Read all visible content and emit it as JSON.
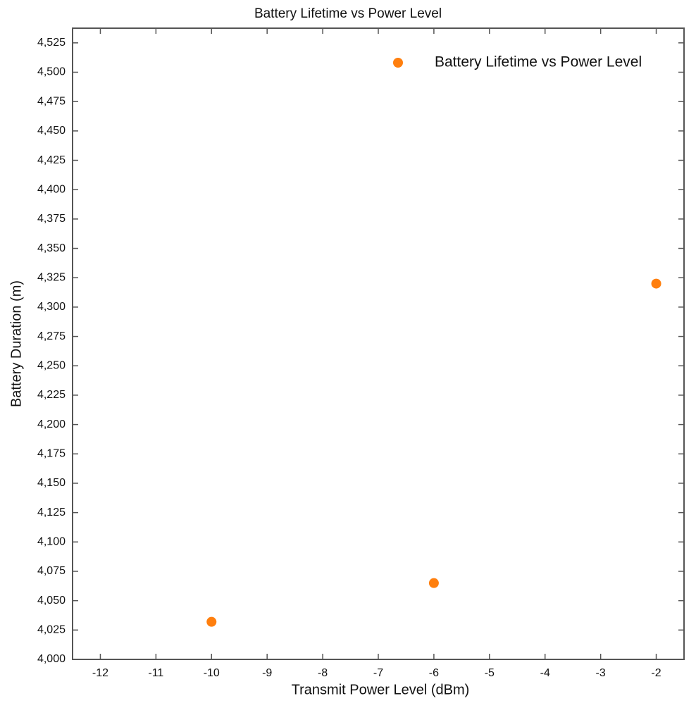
{
  "chart_data": {
    "type": "scatter",
    "title": "Battery Lifetime vs Power Level",
    "x_label": "Transmit Power Level (dBm)",
    "y_label": "Battery Duration (m)",
    "series": [
      {
        "name": "Battery Lifetime vs Power Level",
        "color": "#ff7f0e",
        "x": [
          -10,
          -6,
          -2
        ],
        "values": [
          4032,
          4065,
          4320
        ]
      }
    ],
    "xlim": [
      -12.5,
      -1.5
    ],
    "ylim": [
      4000,
      4537.5
    ],
    "xticks": [
      -12,
      -11,
      -10,
      -9,
      -8,
      -7,
      -6,
      -5,
      -4,
      -3,
      -2
    ],
    "yticks": [
      {
        "value": 4000,
        "label": "4,000"
      },
      {
        "value": 4025,
        "label": "4,025"
      },
      {
        "value": 4050,
        "label": "4,050"
      },
      {
        "value": 4075,
        "label": "4,075"
      },
      {
        "value": 4100,
        "label": "4,100"
      },
      {
        "value": 4125,
        "label": "4,125"
      },
      {
        "value": 4150,
        "label": "4,150"
      },
      {
        "value": 4175,
        "label": "4,175"
      },
      {
        "value": 4200,
        "label": "4,200"
      },
      {
        "value": 4225,
        "label": "4,225"
      },
      {
        "value": 4250,
        "label": "4,250"
      },
      {
        "value": 4275,
        "label": "4,275"
      },
      {
        "value": 4300,
        "label": "4,300"
      },
      {
        "value": 4325,
        "label": "4,325"
      },
      {
        "value": 4350,
        "label": "4,350"
      },
      {
        "value": 4375,
        "label": "4,375"
      },
      {
        "value": 4400,
        "label": "4,400"
      },
      {
        "value": 4425,
        "label": "4,425"
      },
      {
        "value": 4450,
        "label": "4,450"
      },
      {
        "value": 4475,
        "label": "4,475"
      },
      {
        "value": 4500,
        "label": "4,500"
      },
      {
        "value": 4525,
        "label": "4,525"
      }
    ],
    "legend": "upper right",
    "grid": false
  }
}
